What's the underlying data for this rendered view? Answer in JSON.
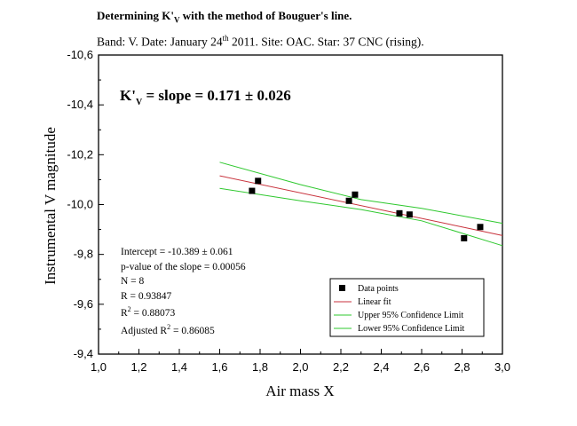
{
  "header": {
    "title_pre": "Determining K'",
    "title_sub": "V",
    "title_post": " with the method of Bouguer's line.",
    "subtitle_pre": "Band: V.  Date: January 24",
    "subtitle_sup": "th",
    "subtitle_post": " 2011.  Site: OAC.  Star: 37 CNC (rising)."
  },
  "annotation": {
    "kv_pre": "K'",
    "kv_sub": "V",
    "kv_post": " = slope = 0.171 ± 0.026"
  },
  "stats": {
    "intercept": "Intercept = -10.389 ± 0.061",
    "pvalue": "p-value of the slope = 0.00056",
    "n": "N = 8",
    "r": "R = 0.93847",
    "r2_pre": "R",
    "r2_sup": "2",
    "r2_post": " = 0.88073",
    "adj_pre": "Adjusted R",
    "adj_sup": "2",
    "adj_post": " = 0.86085"
  },
  "legend": {
    "points": "Data points",
    "fit": "Linear fit",
    "upper": "Upper 95% Confidence Limit",
    "lower": "Lower 95% Confidence Limit"
  },
  "colors": {
    "points": "#000000",
    "fit": "#c8323c",
    "confidence": "#2ec82e"
  },
  "chart_data": {
    "type": "scatter",
    "xlabel": "Air mass  X",
    "ylabel": "Instrumental  V  magnitude",
    "xlim": [
      1.0,
      3.0
    ],
    "ylim": [
      -10.6,
      -9.4
    ],
    "y_inverted": true,
    "x_ticks": [
      "1,0",
      "1,2",
      "1,4",
      "1,6",
      "1,8",
      "2,0",
      "2,2",
      "2,4",
      "2,6",
      "2,8",
      "3,0"
    ],
    "y_ticks": [
      "-10,6",
      "-10,4",
      "-10,2",
      "-10,0",
      "-9,8",
      "-9,6",
      "-9,4"
    ],
    "grid": false,
    "legend_position": "bottom-right",
    "points": {
      "x": [
        1.76,
        1.79,
        2.24,
        2.27,
        2.49,
        2.54,
        2.81,
        2.89
      ],
      "y": [
        -10.055,
        -10.095,
        -10.015,
        -10.04,
        -9.965,
        -9.96,
        -9.865,
        -9.91
      ]
    },
    "fit": {
      "intercept": -10.389,
      "slope": 0.171,
      "x_range": [
        1.6,
        3.0
      ]
    },
    "upper_limit": {
      "x": [
        1.6,
        2.0,
        2.3,
        2.6,
        3.0
      ],
      "y": [
        -10.17,
        -10.08,
        -10.02,
        -9.985,
        -9.925
      ]
    },
    "lower_limit": {
      "x": [
        1.6,
        2.0,
        2.3,
        2.6,
        3.0
      ],
      "y": [
        -10.065,
        -10.015,
        -9.98,
        -9.935,
        -9.835
      ]
    }
  }
}
